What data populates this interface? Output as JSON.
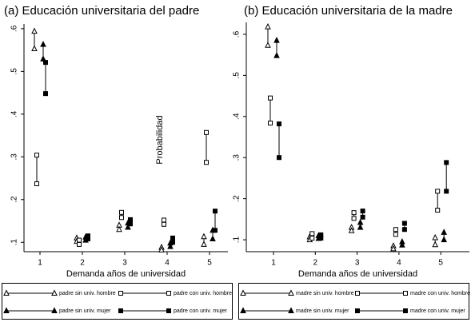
{
  "chart_data": [
    {
      "type": "range",
      "title": "(a) Educación universitaria del padre",
      "x_label": "Demanda años de universidad",
      "y_label": "Probabilidad",
      "categories": [
        "1",
        "2",
        "3",
        "4",
        "5"
      ],
      "ylim": [
        0.078,
        0.611
      ],
      "yticks": [
        {
          "value": 0.1,
          "label": ".1"
        },
        {
          "value": 0.2,
          "label": ".2"
        },
        {
          "value": 0.3,
          "label": ".3"
        },
        {
          "value": 0.4,
          "label": ".4"
        },
        {
          "value": 0.5,
          "label": ".5"
        },
        {
          "value": 0.6,
          "label": ".6"
        }
      ],
      "series": [
        {
          "name": "padre sin univ. hombre",
          "marker": "triangle-open",
          "color": "#000000",
          "values": [
            [
              0.594,
              0.553
            ],
            [
              0.11,
              0.102
            ],
            [
              0.14,
              0.13
            ],
            [
              0.088,
              0.082
            ],
            [
              0.113,
              0.095
            ]
          ]
        },
        {
          "name": "padre con univ. hombre",
          "marker": "square-open",
          "color": "#000000",
          "values": [
            [
              0.304,
              0.237
            ],
            [
              0.105,
              0.095
            ],
            [
              0.17,
              0.158
            ],
            [
              0.152,
              0.142
            ],
            [
              0.357,
              0.287
            ]
          ]
        },
        {
          "name": "padre sin univ. mujer",
          "marker": "triangle",
          "color": "#000000",
          "values": [
            [
              0.563,
              0.529
            ],
            [
              0.112,
              0.105
            ],
            [
              0.145,
              0.135
            ],
            [
              0.098,
              0.09
            ],
            [
              0.128,
              0.108
            ]
          ]
        },
        {
          "name": "padre con univ. mujer",
          "marker": "square",
          "color": "#000000",
          "values": [
            [
              0.521,
              0.448
            ],
            [
              0.115,
              0.108
            ],
            [
              0.153,
              0.143
            ],
            [
              0.11,
              0.1
            ],
            [
              0.173,
              0.128
            ]
          ]
        }
      ]
    },
    {
      "type": "range",
      "title": "(b) Educación universitaria de la madre",
      "x_label": "Demanda años de universidad",
      "categories": [
        "1",
        "2",
        "3",
        "4",
        "5"
      ],
      "ylim": [
        0.071,
        0.629
      ],
      "yticks": [
        {
          "value": 0.1,
          "label": ".1"
        },
        {
          "value": 0.2,
          "label": ".2"
        },
        {
          "value": 0.3,
          "label": ".3"
        },
        {
          "value": 0.4,
          "label": ".4"
        },
        {
          "value": 0.5,
          "label": ".5"
        },
        {
          "value": 0.6,
          "label": ".6"
        }
      ],
      "series": [
        {
          "name": "madre sin univ. hombre",
          "marker": "triangle-open",
          "color": "#000000",
          "values": [
            [
              0.618,
              0.573
            ],
            [
              0.107,
              0.1
            ],
            [
              0.13,
              0.122
            ],
            [
              0.085,
              0.078
            ],
            [
              0.105,
              0.088
            ]
          ]
        },
        {
          "name": "madre con univ. hombre",
          "marker": "square-open",
          "color": "#000000",
          "values": [
            [
              0.445,
              0.384
            ],
            [
              0.115,
              0.104
            ],
            [
              0.166,
              0.152
            ],
            [
              0.125,
              0.113
            ],
            [
              0.218,
              0.172
            ]
          ]
        },
        {
          "name": "madre sin univ. mujer",
          "marker": "triangle",
          "color": "#000000",
          "values": [
            [
              0.585,
              0.548
            ],
            [
              0.11,
              0.103
            ],
            [
              0.142,
              0.13
            ],
            [
              0.095,
              0.087
            ],
            [
              0.118,
              0.1
            ]
          ]
        },
        {
          "name": "madre con univ. mujer",
          "marker": "square",
          "color": "#000000",
          "values": [
            [
              0.382,
              0.3
            ],
            [
              0.112,
              0.104
            ],
            [
              0.17,
              0.155
            ],
            [
              0.14,
              0.125
            ],
            [
              0.288,
              0.218
            ]
          ]
        }
      ]
    }
  ]
}
